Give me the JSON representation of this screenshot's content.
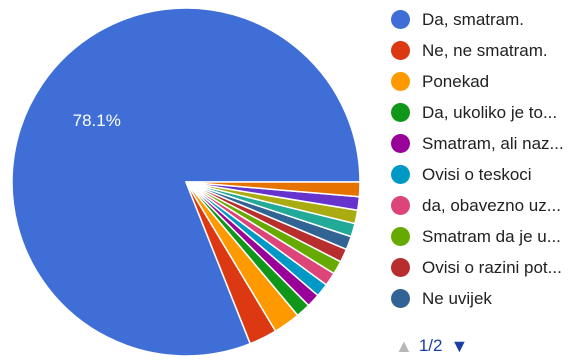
{
  "chart_data": {
    "type": "pie",
    "start_angle_deg": 0,
    "direction": "counterclockwise",
    "slices": [
      {
        "label": "Da, smatram.",
        "value": 78.1,
        "color": "#3f6fd6",
        "shown_label": "78.1%"
      },
      {
        "label": "Ne, ne smatram.",
        "value": 2.5,
        "color": "#dc3912",
        "shown_label": ""
      },
      {
        "label": "Ponekad",
        "value": 2.4,
        "color": "#ff9900",
        "shown_label": ""
      },
      {
        "label": "Da, ukoliko je to...",
        "value": 1.3,
        "color": "#109618",
        "shown_label": ""
      },
      {
        "label": "Smatram, ali naz...",
        "value": 1.2,
        "color": "#990099",
        "shown_label": ""
      },
      {
        "label": "Ovisi o teskoci",
        "value": 1.2,
        "color": "#0099c6",
        "shown_label": ""
      },
      {
        "label": "da, obavezno uz...",
        "value": 1.2,
        "color": "#dd4477",
        "shown_label": ""
      },
      {
        "label": "Smatram da je u...",
        "value": 1.2,
        "color": "#66aa00",
        "shown_label": ""
      },
      {
        "label": "Ovisi o razini pot...",
        "value": 1.2,
        "color": "#b82e2e",
        "shown_label": ""
      },
      {
        "label": "Ne uvijek",
        "value": 1.2,
        "color": "#316395",
        "shown_label": ""
      },
      {
        "label": "",
        "value": 1.2,
        "color": "#22aa99",
        "shown_label": ""
      },
      {
        "label": "",
        "value": 1.2,
        "color": "#aaaa11",
        "shown_label": ""
      },
      {
        "label": "",
        "value": 1.2,
        "color": "#6633cc",
        "shown_label": ""
      },
      {
        "label": "",
        "value": 1.3,
        "color": "#e67300",
        "shown_label": ""
      }
    ]
  },
  "legend": {
    "items": [
      {
        "label": "Da, smatram.",
        "color": "#3f6fd6"
      },
      {
        "label": "Ne, ne smatram.",
        "color": "#dc3912"
      },
      {
        "label": "Ponekad",
        "color": "#ff9900"
      },
      {
        "label": "Da, ukoliko je to...",
        "color": "#109618"
      },
      {
        "label": "Smatram, ali naz...",
        "color": "#990099"
      },
      {
        "label": "Ovisi o teskoci",
        "color": "#0099c6"
      },
      {
        "label": "da, obavezno uz...",
        "color": "#dd4477"
      },
      {
        "label": "Smatram da je u...",
        "color": "#66aa00"
      },
      {
        "label": "Ovisi o razini pot...",
        "color": "#b82e2e"
      },
      {
        "label": "Ne uvijek",
        "color": "#316395"
      }
    ]
  },
  "pager": {
    "text": "1/2",
    "prev_icon": "triangle-up-icon",
    "next_icon": "triangle-down-icon"
  }
}
